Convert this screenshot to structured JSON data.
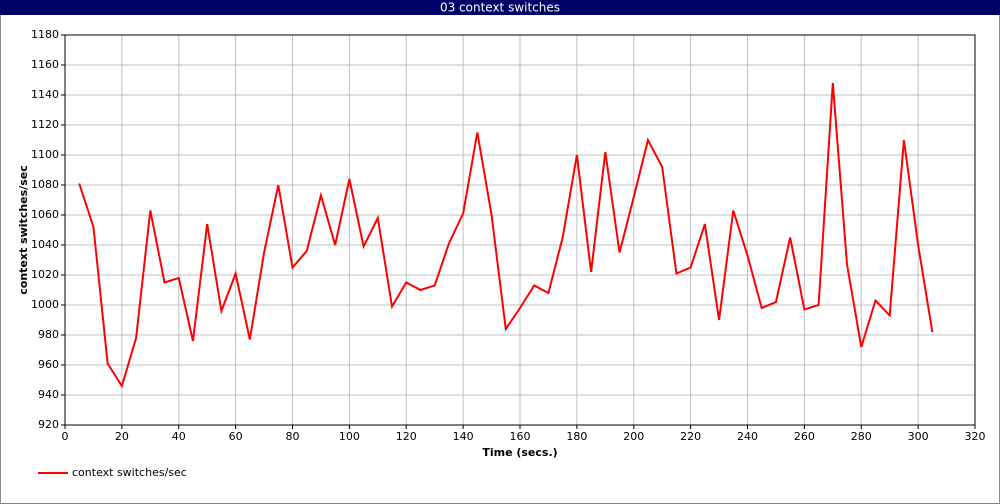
{
  "chart_data": {
    "type": "line",
    "title": "03 context switches",
    "x_label": "Time (secs.)",
    "y_label": "context switches/sec",
    "x": [
      5,
      10,
      15,
      20,
      25,
      30,
      35,
      40,
      45,
      50,
      55,
      60,
      65,
      70,
      75,
      80,
      85,
      90,
      95,
      100,
      105,
      110,
      115,
      120,
      125,
      130,
      135,
      140,
      145,
      150,
      155,
      160,
      165,
      170,
      175,
      180,
      185,
      190,
      195,
      200,
      205,
      210,
      215,
      220,
      225,
      230,
      235,
      240,
      245,
      250,
      255,
      260,
      265,
      270,
      275,
      280,
      285,
      290,
      295,
      300,
      305
    ],
    "series": [
      {
        "name": "context switches/sec",
        "color": "#ff0000",
        "values": [
          1081,
          1052,
          961,
          946,
          978,
          1063,
          1015,
          1018,
          976,
          1054,
          996,
          1021,
          977,
          1035,
          1080,
          1025,
          1036,
          1073,
          1040,
          1084,
          1039,
          1058,
          999,
          1015,
          1010,
          1013,
          1041,
          1061,
          1115,
          1060,
          984,
          998,
          1013,
          1008,
          1045,
          1100,
          1022,
          1102,
          1035,
          1072,
          1110,
          1092,
          1021,
          1025,
          1054,
          990,
          1063,
          1033,
          998,
          1002,
          1045,
          997,
          1000,
          1148,
          1027,
          972,
          1003,
          993,
          1110,
          1040,
          982
        ]
      }
    ],
    "xlim": [
      0,
      320
    ],
    "xticks": [
      0,
      20,
      40,
      60,
      80,
      100,
      120,
      140,
      160,
      180,
      200,
      220,
      240,
      260,
      280,
      300,
      320
    ],
    "ylim": [
      920,
      1180
    ],
    "yticks": [
      920,
      940,
      960,
      980,
      1000,
      1020,
      1040,
      1060,
      1080,
      1100,
      1120,
      1140,
      1160,
      1180
    ],
    "grid": true
  }
}
